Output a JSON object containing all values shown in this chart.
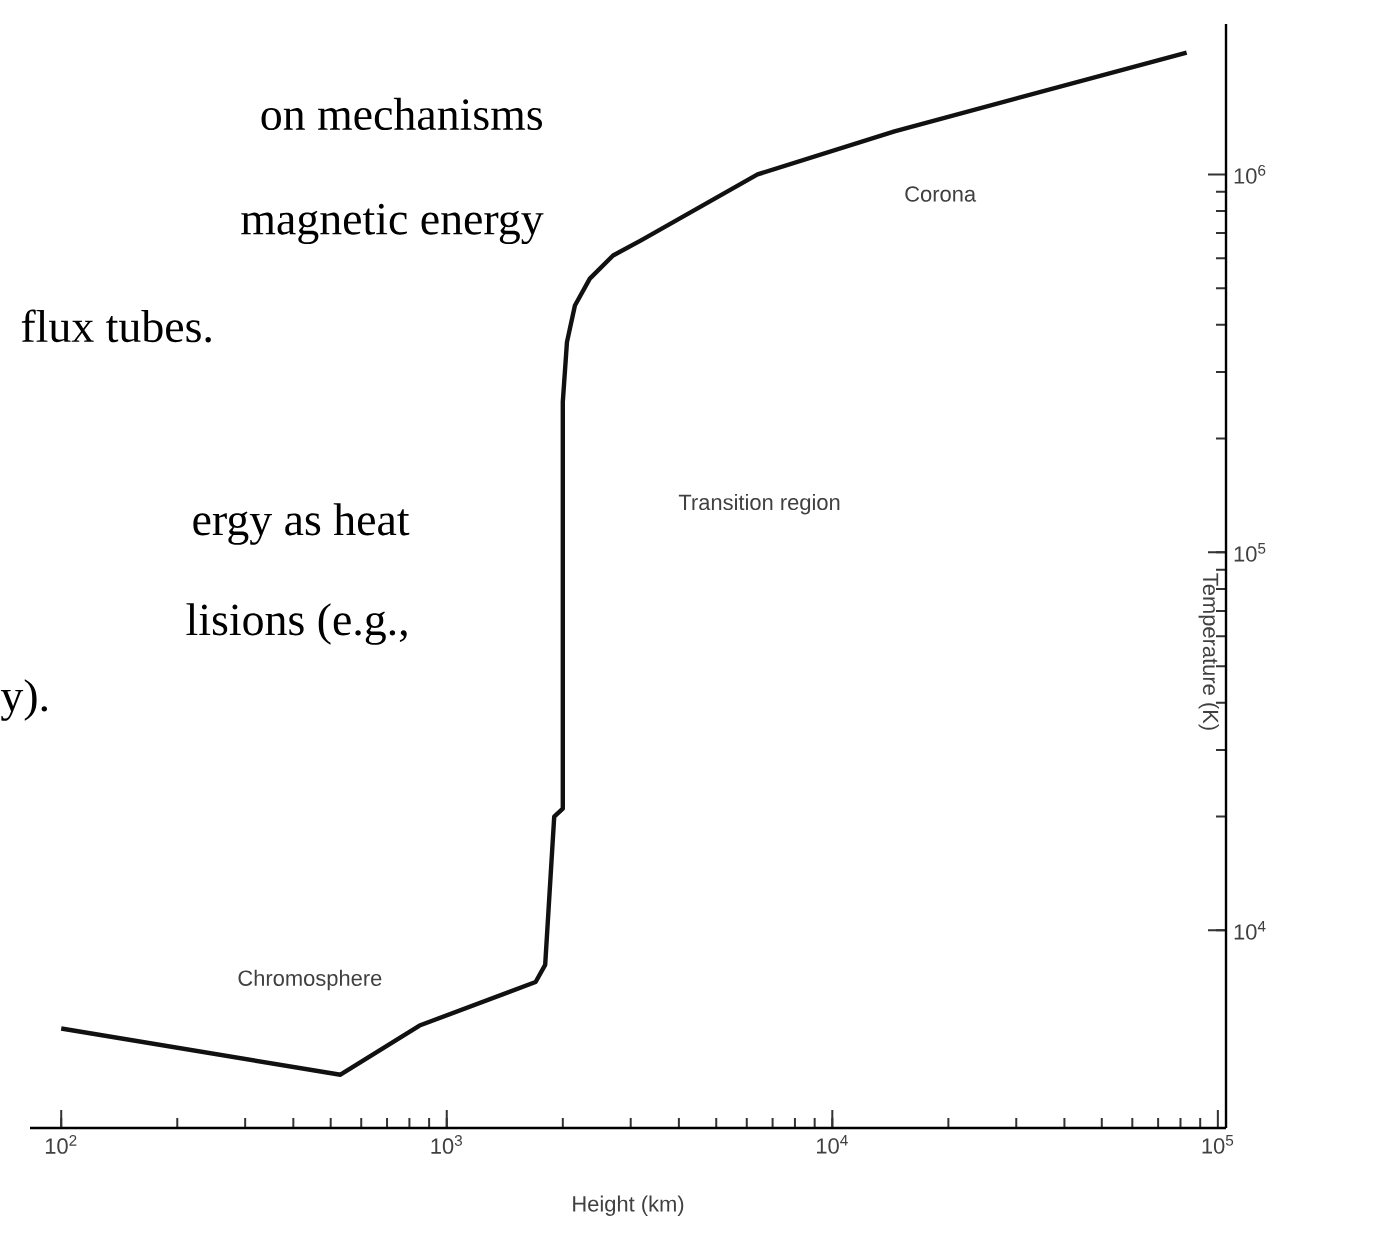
{
  "chart_data": {
    "type": "line",
    "xlabel": "Height (km)",
    "ylabel": "Temperature (K)",
    "log": "xy",
    "color": "#111111",
    "x": [
      100,
      530,
      850,
      1700,
      1800,
      1900,
      2000,
      2000,
      2050,
      2150,
      2350,
      2700,
      3200,
      6400,
      14500,
      83000
    ],
    "values": [
      5500,
      4150,
      5600,
      7300,
      8100,
      20000,
      21000,
      250000,
      360000,
      450000,
      530000,
      610000,
      670000,
      1000000,
      1300000,
      2100000
    ],
    "xlim": [
      83,
      105000
    ],
    "ylim": [
      3000,
      2500000
    ],
    "xticks": [
      {
        "value": 100,
        "label": "10$^{2}$"
      },
      {
        "value": 1000,
        "label": "10$^{3}$"
      },
      {
        "value": 10000,
        "label": "10$^{4}$"
      },
      {
        "value": 100000,
        "label": "10$^{5}$"
      }
    ],
    "yticks": [
      {
        "value": 10000,
        "label": "10$^{4}$"
      },
      {
        "value": 100000,
        "label": "10$^{5}$"
      },
      {
        "value": 1000000,
        "label": "10$^{6}$"
      }
    ],
    "annotations": [
      "Corona",
      "Transition region",
      "Chromosphere",
      "on mechanisms",
      "magnetic energy",
      "flux tubes.",
      "ergy as heat",
      "lisions (e.g.,",
      "y)."
    ]
  }
}
